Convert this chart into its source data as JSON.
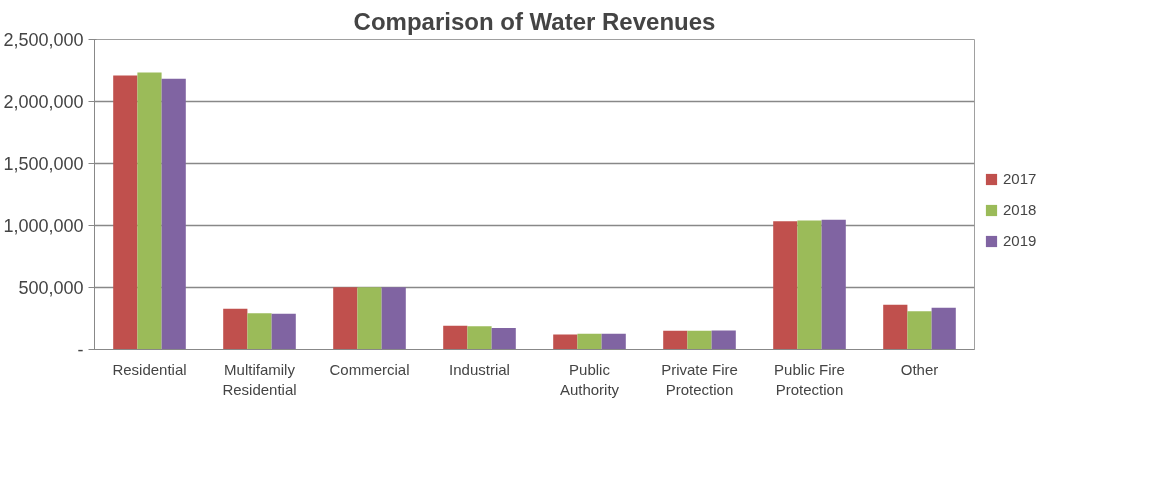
{
  "chart_data": {
    "type": "bar",
    "title": "Comparison of Water Revenues",
    "categories": [
      "Residential",
      "Multifamily\nResidential",
      "Commercial",
      "Industrial",
      "Public\nAuthority",
      "Private Fire\nProtection",
      "Public Fire\nProtection",
      "Other"
    ],
    "series": [
      {
        "name": "2017",
        "color": "#c0504d",
        "values": [
          2210000,
          328000,
          503000,
          191000,
          120000,
          151000,
          1034000,
          361000
        ]
      },
      {
        "name": "2018",
        "color": "#9bbb59",
        "values": [
          2234000,
          293000,
          503000,
          188000,
          127000,
          151000,
          1040000,
          309000
        ]
      },
      {
        "name": "2019",
        "color": "#8064a2",
        "values": [
          2183000,
          288000,
          503000,
          173000,
          127000,
          154000,
          1046000,
          336000
        ]
      }
    ],
    "ylim": [
      0,
      2500000
    ],
    "yticks": [
      {
        "value": 0,
        "label": "-"
      },
      {
        "value": 500000,
        "label": "500,000"
      },
      {
        "value": 1000000,
        "label": "1,000,000"
      },
      {
        "value": 1500000,
        "label": "1,500,000"
      },
      {
        "value": 2000000,
        "label": "2,000,000"
      },
      {
        "value": 2500000,
        "label": "2,500,000"
      }
    ],
    "grid": "y",
    "legend": "right"
  }
}
